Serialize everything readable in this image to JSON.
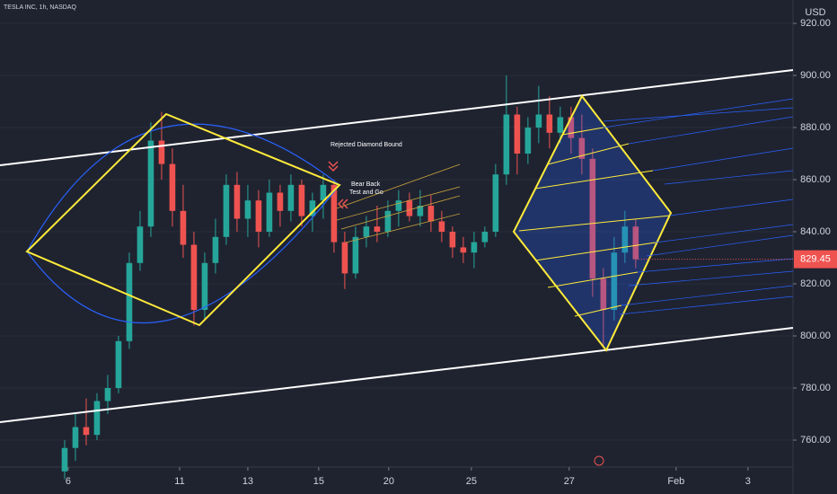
{
  "chart_data": {
    "type": "candlestick",
    "symbol_title": "TESLA INC, 1h, NASDAQ",
    "currency": "USD",
    "annotations": [
      "Rejected Diamond Bound",
      "Bear Back",
      "Test and Go"
    ],
    "x": [
      6,
      7,
      8,
      9,
      10,
      11,
      12,
      13,
      14,
      15,
      16,
      17,
      18,
      19,
      20,
      21,
      22,
      23,
      24,
      25,
      26,
      27,
      28,
      29,
      30,
      31,
      32,
      33,
      34,
      35,
      36,
      37,
      38,
      39,
      40,
      41,
      42,
      43,
      44,
      45,
      46,
      47,
      48,
      49,
      50,
      51,
      52,
      53,
      54,
      55,
      56,
      57,
      58,
      59
    ],
    "open": [
      748,
      757,
      765,
      762,
      775,
      780,
      798,
      828,
      842,
      875,
      866,
      848,
      835,
      810,
      828,
      838,
      858,
      845,
      852,
      840,
      855,
      848,
      858,
      846,
      852,
      858,
      836,
      824,
      838,
      842,
      840,
      848,
      852,
      846,
      850,
      844,
      840,
      834,
      832,
      836,
      840,
      862,
      885,
      870,
      880,
      885,
      878,
      884,
      876,
      868,
      822,
      810,
      832,
      842
    ],
    "high": [
      760,
      770,
      776,
      778,
      785,
      800,
      832,
      848,
      882,
      886,
      872,
      858,
      840,
      832,
      845,
      862,
      863,
      858,
      856,
      860,
      858,
      862,
      860,
      855,
      862,
      860,
      840,
      842,
      846,
      850,
      852,
      856,
      855,
      856,
      854,
      848,
      842,
      838,
      840,
      842,
      866,
      900,
      888,
      884,
      896,
      892,
      888,
      888,
      885,
      872,
      826,
      838,
      848,
      845
    ],
    "low": [
      745,
      752,
      758,
      760,
      770,
      778,
      795,
      825,
      838,
      860,
      842,
      830,
      804,
      806,
      824,
      835,
      840,
      838,
      834,
      838,
      842,
      844,
      842,
      840,
      845,
      832,
      818,
      822,
      834,
      836,
      838,
      842,
      844,
      842,
      840,
      836,
      830,
      828,
      826,
      834,
      838,
      858,
      862,
      866,
      874,
      872,
      874,
      870,
      862,
      815,
      796,
      806,
      828,
      826
    ],
    "close": [
      757,
      765,
      762,
      775,
      780,
      798,
      828,
      842,
      875,
      866,
      848,
      835,
      810,
      828,
      838,
      858,
      845,
      852,
      840,
      855,
      848,
      858,
      846,
      852,
      858,
      836,
      824,
      838,
      842,
      840,
      848,
      852,
      846,
      850,
      844,
      840,
      834,
      832,
      836,
      840,
      862,
      885,
      870,
      880,
      885,
      878,
      884,
      876,
      868,
      822,
      810,
      832,
      842,
      829.45
    ],
    "up_color": "#26a69a",
    "down_color": "#ef5350",
    "xlim": [
      0,
      73.6
    ],
    "xticks": [
      {
        "value": 6.33,
        "label": "6"
      },
      {
        "value": 16.67,
        "label": "11"
      },
      {
        "value": 23,
        "label": "13"
      },
      {
        "value": 29.58,
        "label": "15"
      },
      {
        "value": 36.08,
        "label": "20"
      },
      {
        "value": 43.75,
        "label": "25"
      },
      {
        "value": 52.83,
        "label": "27"
      },
      {
        "value": 62.75,
        "label": "Feb"
      },
      {
        "value": 69.42,
        "label": "3"
      }
    ],
    "ylim": [
      749.66,
      928.97
    ],
    "yticks": [
      {
        "value": 760,
        "label": "760.00"
      },
      {
        "value": 780,
        "label": "780.00"
      },
      {
        "value": 800,
        "label": "800.00"
      },
      {
        "value": 820,
        "label": "820.00"
      },
      {
        "value": 840,
        "label": "840.00"
      },
      {
        "value": 860,
        "label": "860.00"
      },
      {
        "value": 880,
        "label": "880.00"
      },
      {
        "value": 900,
        "label": "900.00"
      },
      {
        "value": 920,
        "label": "920.00"
      }
    ]
  }
}
